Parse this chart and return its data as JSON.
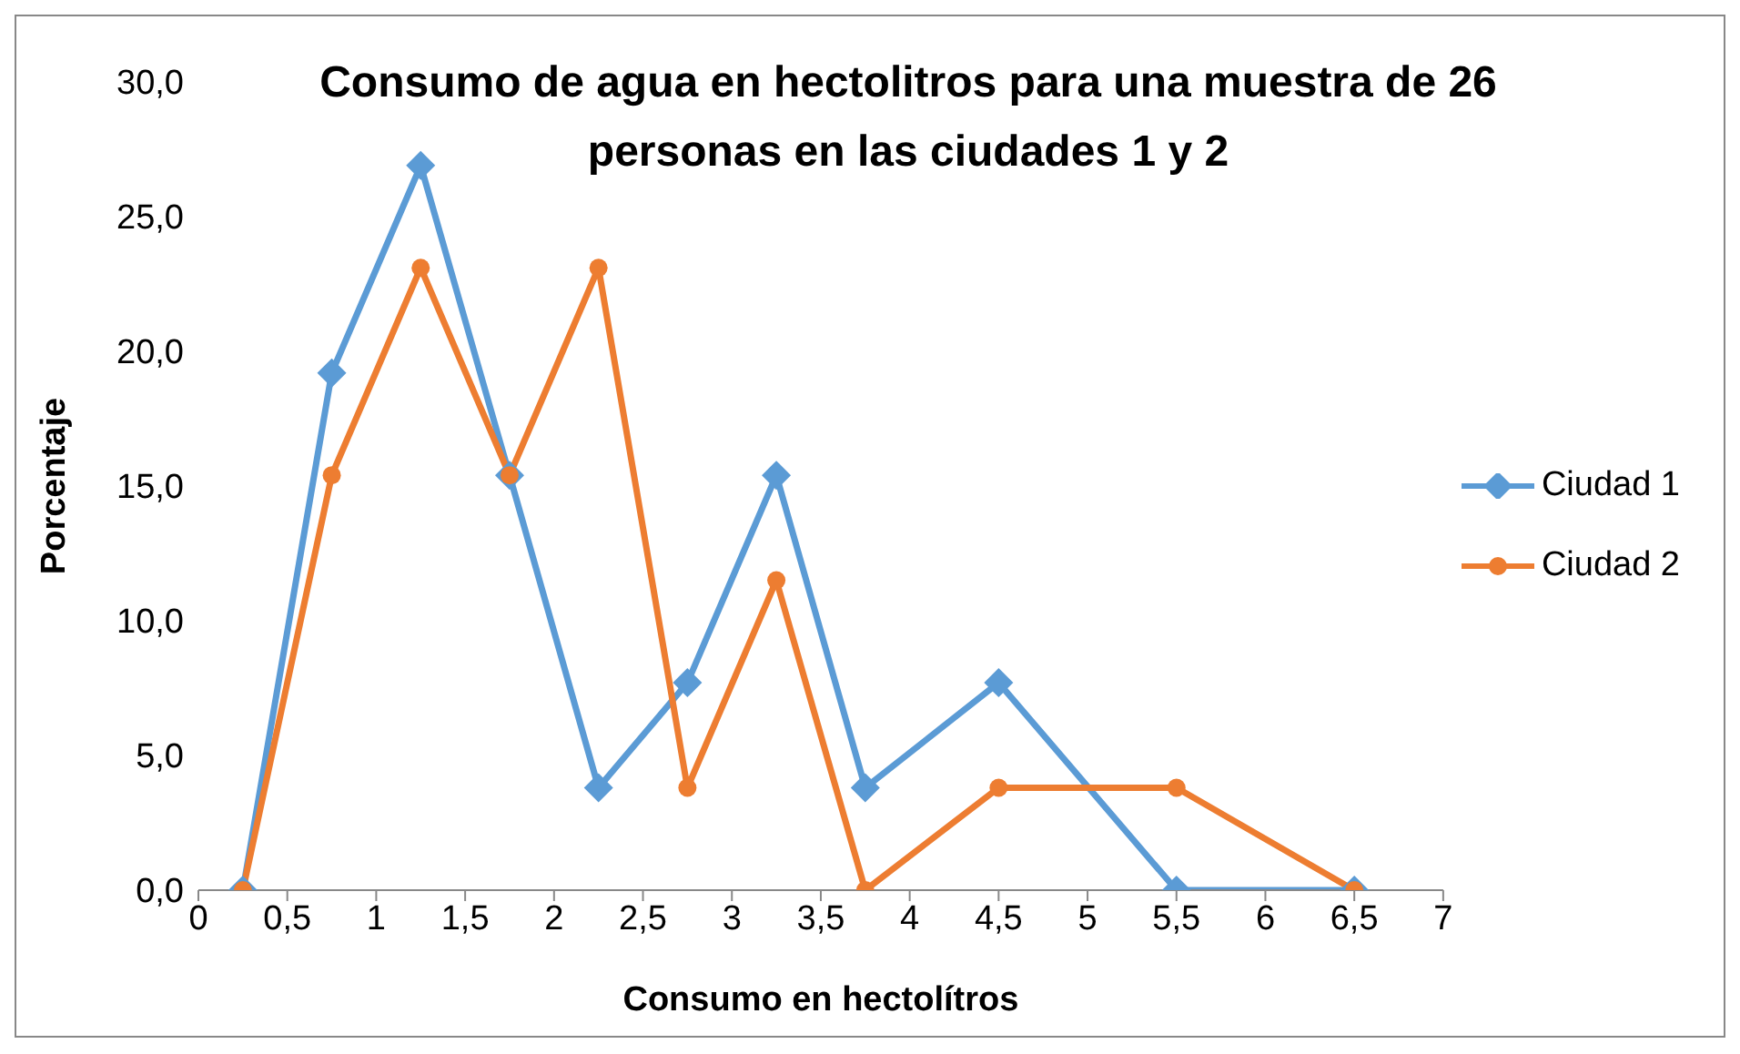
{
  "chart_data": {
    "type": "line",
    "title": "Consumo de agua en hectolitros para una muestra de 26 personas en las ciudades 1 y 2",
    "xlabel": "Consumo en hectolítros",
    "ylabel": "Porcentaje",
    "x": [
      0.25,
      0.75,
      1.25,
      1.75,
      2.25,
      2.75,
      3.25,
      3.75,
      4.5,
      5.5,
      6.5
    ],
    "series": [
      {
        "name": "Ciudad 1",
        "color": "#5b9bd5",
        "marker": "diamond",
        "values": [
          0,
          19.2,
          26.9,
          15.4,
          3.8,
          7.7,
          15.4,
          3.8,
          7.7,
          0,
          0
        ]
      },
      {
        "name": "Ciudad 2",
        "color": "#ed7d31",
        "marker": "circle",
        "values": [
          0,
          15.4,
          23.1,
          15.4,
          23.1,
          3.8,
          11.5,
          0,
          3.8,
          3.8,
          0
        ]
      }
    ],
    "xlim": [
      0,
      7
    ],
    "xticks": [
      0,
      {
        "value": 0.5,
        "label": "0,5"
      },
      1,
      {
        "value": 1.5,
        "label": "1,5"
      },
      2,
      {
        "value": 2.5,
        "label": "2,5"
      },
      3,
      {
        "value": 3.5,
        "label": "3,5"
      },
      4,
      {
        "value": 4.5,
        "label": "4,5"
      },
      5,
      {
        "value": 5.5,
        "label": "5,5"
      },
      6,
      {
        "value": 6.5,
        "label": "6,5"
      },
      7
    ],
    "ylim": [
      0,
      30
    ],
    "yticks": [
      {
        "value": 0,
        "label": "0,0"
      },
      {
        "value": 5,
        "label": "5,0"
      },
      {
        "value": 10,
        "label": "10,0"
      },
      {
        "value": 15,
        "label": "15,0"
      },
      {
        "value": 20,
        "label": "20,0"
      },
      {
        "value": 25,
        "label": "25,0"
      },
      {
        "value": 30,
        "label": "30,0"
      }
    ],
    "grid": false,
    "legend": "right",
    "line_style": "solid"
  }
}
